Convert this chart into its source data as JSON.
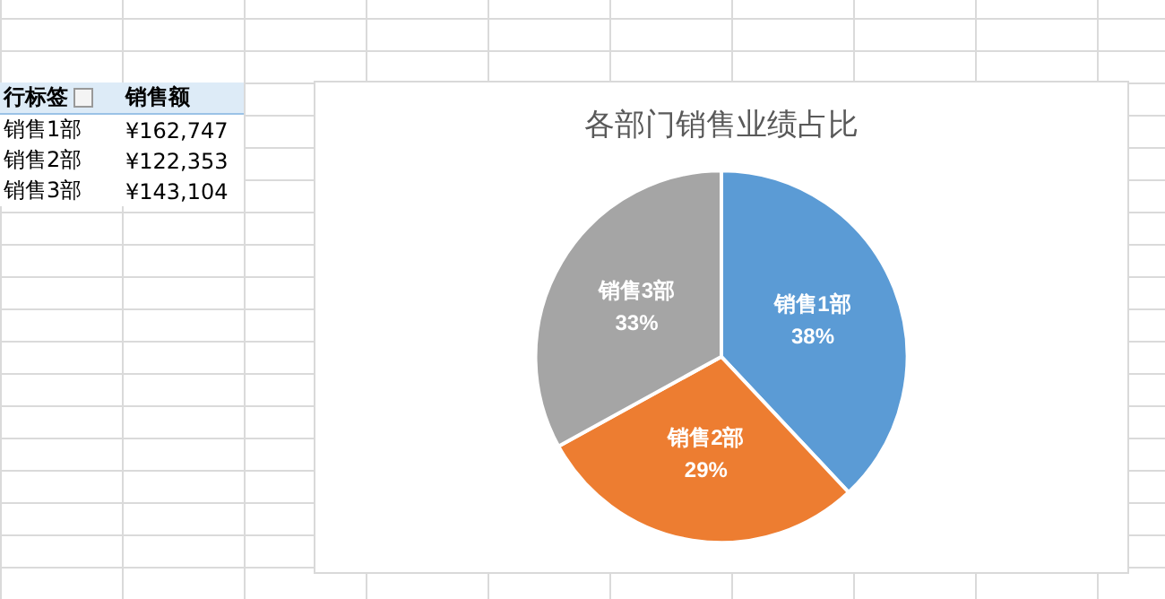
{
  "chart_data": {
    "type": "pie",
    "title": "各部门销售业绩占比",
    "categories": [
      "销售1部",
      "销售2部",
      "销售3部"
    ],
    "values": [
      38,
      29,
      33
    ],
    "value_labels": [
      "38%",
      "29%",
      "33%"
    ],
    "colors": [
      "#5b9bd5",
      "#ed7d31",
      "#a5a5a5"
    ],
    "annotations": [
      "行标签",
      "销售额",
      "¥162,747",
      "¥122,353",
      "¥143,104"
    ]
  }
}
